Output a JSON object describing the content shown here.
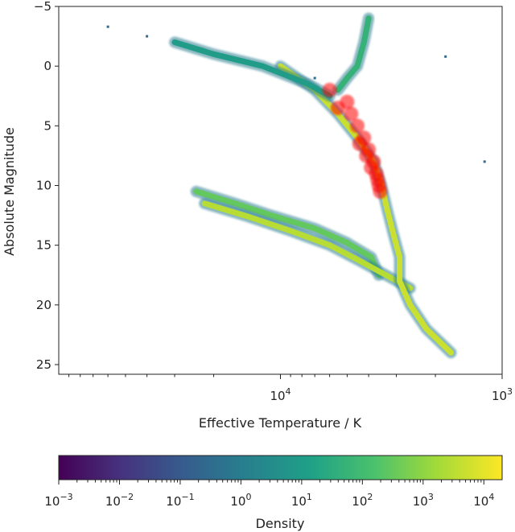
{
  "chart_data": {
    "type": "scatter",
    "title": "",
    "xlabel": "Effective Temperature / K",
    "ylabel": "Absolute Magnitude",
    "x_scale": "log",
    "x_direction": "decreasing to the right",
    "y_direction": "inverted",
    "xlim": [
      100000,
      1000
    ],
    "ylim": [
      26,
      -5
    ],
    "x_ticks": [
      {
        "value": 10000,
        "base": "10",
        "exp": "4"
      },
      {
        "value": 1000,
        "base": "10",
        "exp": "3"
      }
    ],
    "y_ticks": [
      -5,
      0,
      5,
      10,
      15,
      20,
      25
    ],
    "grid": false,
    "colorbar": {
      "label": "Density",
      "scale": "log",
      "colormap": "viridis",
      "range": [
        0.001,
        20000
      ],
      "ticks": [
        {
          "value": 0.001,
          "base": "10",
          "exp": "−3"
        },
        {
          "value": 0.01,
          "base": "10",
          "exp": "−2"
        },
        {
          "value": 0.1,
          "base": "10",
          "exp": "−1"
        },
        {
          "value": 1,
          "base": "10",
          "exp": "0"
        },
        {
          "value": 10,
          "base": "10",
          "exp": "1"
        },
        {
          "value": 100,
          "base": "10",
          "exp": "2"
        },
        {
          "value": 1000,
          "base": "10",
          "exp": "3"
        },
        {
          "value": 10000,
          "base": "10",
          "exp": "4"
        }
      ]
    },
    "density_tracks": [
      {
        "track": "upper white dwarf sequence",
        "points": [
          [
            24000,
            10.5
          ],
          [
            16000,
            11.5
          ],
          [
            11000,
            12.5
          ],
          [
            7000,
            13.6
          ],
          [
            5000,
            14.8
          ],
          [
            3900,
            16.0
          ],
          [
            3600,
            17.5
          ]
        ],
        "peak_density": 300
      },
      {
        "track": "lower white dwarf sequence",
        "points": [
          [
            22000,
            11.5
          ],
          [
            14000,
            12.6
          ],
          [
            9000,
            13.8
          ],
          [
            6000,
            15.0
          ],
          [
            4500,
            16.2
          ],
          [
            3500,
            17.3
          ],
          [
            2600,
            18.6
          ]
        ],
        "peak_density": 3000
      },
      {
        "track": "main sequence",
        "points": [
          [
            10000,
            0
          ],
          [
            7000,
            2
          ],
          [
            5500,
            4
          ],
          [
            4500,
            6
          ],
          [
            3800,
            8
          ],
          [
            3500,
            10
          ],
          [
            3300,
            12
          ],
          [
            3100,
            14
          ],
          [
            2900,
            16
          ],
          [
            2900,
            18
          ],
          [
            2600,
            20
          ],
          [
            2200,
            22
          ],
          [
            1700,
            24
          ]
        ],
        "peak_density": 5000
      },
      {
        "track": "upper branch",
        "points": [
          [
            30000,
            -2
          ],
          [
            20000,
            -1
          ],
          [
            12000,
            0
          ],
          [
            7500,
            1.5
          ],
          [
            6000,
            2.5
          ]
        ],
        "peak_density": 10
      },
      {
        "track": "giant branch",
        "points": [
          [
            4000,
            -4
          ],
          [
            4200,
            -2
          ],
          [
            4500,
            0
          ],
          [
            5000,
            1
          ],
          [
            5500,
            2
          ]
        ],
        "peak_density": 50
      }
    ],
    "sparse_points": [
      [
        60000,
        -3.3
      ],
      [
        40000,
        -2.5
      ],
      [
        7000,
        1
      ],
      [
        1800,
        -0.8
      ],
      [
        1200,
        8
      ]
    ],
    "overlay": {
      "color": "#ff0000",
      "points": [
        [
          6000,
          2
        ],
        [
          5000,
          3
        ],
        [
          4800,
          4
        ],
        [
          4500,
          5
        ],
        [
          4200,
          6
        ],
        [
          4000,
          7
        ],
        [
          3800,
          8
        ],
        [
          3700,
          9
        ],
        [
          3600,
          10
        ],
        [
          5500,
          3.5
        ],
        [
          4400,
          6.5
        ],
        [
          4100,
          7.5
        ],
        [
          3900,
          8.5
        ],
        [
          3650,
          9.5
        ],
        [
          3550,
          10.5
        ]
      ]
    }
  }
}
